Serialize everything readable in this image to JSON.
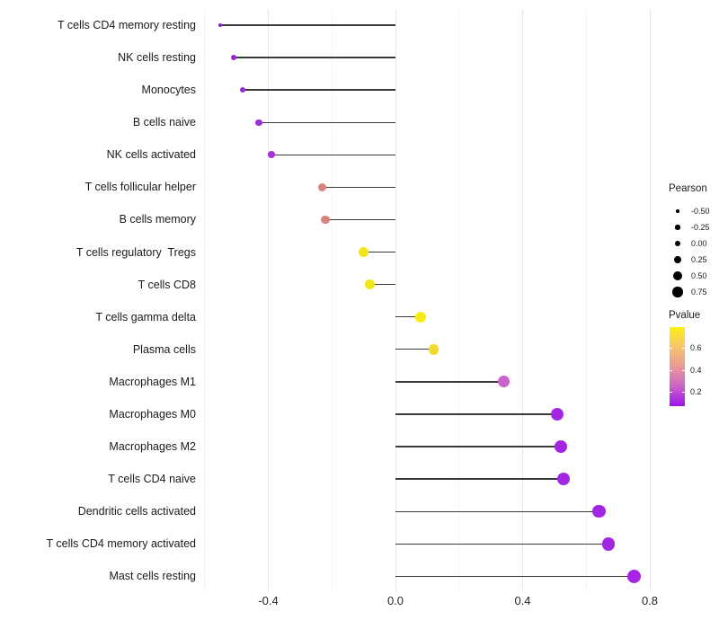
{
  "chart_data": {
    "type": "lollipop",
    "title": "",
    "xlabel": "",
    "ylabel": "",
    "xlim": [
      -0.62,
      0.83
    ],
    "grid": "vertical-only",
    "x_ticks": [
      -0.4,
      0.0,
      0.4,
      0.8
    ],
    "x_tick_labels": [
      "-0.4",
      "0.0",
      "0.4",
      "0.8"
    ],
    "x_minor_gridlines": [
      -0.6,
      -0.2,
      0.2,
      0.6
    ],
    "stem_baseline": 0.0,
    "rows": [
      {
        "label": "T cells CD4 memory resting",
        "pearson": -0.55,
        "dot_color": "#8526c6"
      },
      {
        "label": "NK cells resting",
        "pearson": -0.51,
        "dot_color": "#9129d3"
      },
      {
        "label": "Monocytes",
        "pearson": -0.48,
        "dot_color": "#992bd8"
      },
      {
        "label": "B cells naive",
        "pearson": -0.43,
        "dot_color": "#9d2eda"
      },
      {
        "label": "NK cells activated",
        "pearson": -0.39,
        "dot_color": "#a233dc"
      },
      {
        "label": "T cells follicular helper",
        "pearson": -0.23,
        "dot_color": "#d9837d"
      },
      {
        "label": "B cells memory",
        "pearson": -0.22,
        "dot_color": "#d9837d"
      },
      {
        "label": "T cells regulatory  Tregs",
        "pearson": -0.1,
        "dot_color": "#f2e51c"
      },
      {
        "label": "T cells CD8",
        "pearson": -0.08,
        "dot_color": "#f2e51c"
      },
      {
        "label": "T cells gamma delta",
        "pearson": 0.08,
        "dot_color": "#f6ec10"
      },
      {
        "label": "Plasma cells",
        "pearson": 0.12,
        "dot_color": "#f0dc28"
      },
      {
        "label": "Macrophages M1",
        "pearson": 0.34,
        "dot_color": "#c963c9"
      },
      {
        "label": "Macrophages M0",
        "pearson": 0.51,
        "dot_color": "#a226e2"
      },
      {
        "label": "Macrophages M2",
        "pearson": 0.52,
        "dot_color": "#a226e2"
      },
      {
        "label": "T cells CD4 naive",
        "pearson": 0.53,
        "dot_color": "#a226e2"
      },
      {
        "label": "Dendritic cells activated",
        "pearson": 0.64,
        "dot_color": "#a226e2"
      },
      {
        "label": "T cells CD4 memory activated",
        "pearson": 0.67,
        "dot_color": "#a226e2"
      },
      {
        "label": "Mast cells resting",
        "pearson": 0.75,
        "dot_color": "#a524e6"
      }
    ],
    "legend_size": {
      "title": "Pearson",
      "entries": [
        "-0.50",
        "-0.25",
        "0.00",
        "0.25",
        "0.50",
        "0.75"
      ],
      "values": [
        -0.5,
        -0.25,
        0.0,
        0.25,
        0.5,
        0.75
      ],
      "dot_color": "#000000"
    },
    "legend_color": {
      "title": "Pvalue",
      "tick_labels": [
        "0.6",
        "0.4",
        "0.2"
      ],
      "tick_values": [
        0.6,
        0.4,
        0.2
      ],
      "gradient_stops": [
        "#fbf116",
        "#f6c56b",
        "#e89a96",
        "#cc63c8",
        "#9a14e9"
      ],
      "high_color": "#fbf116",
      "low_color": "#9a14e9"
    }
  }
}
